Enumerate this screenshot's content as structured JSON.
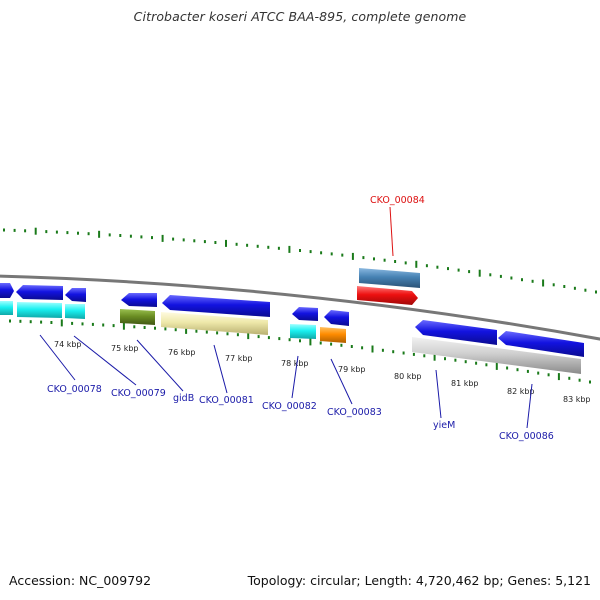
{
  "title": "Citrobacter koseri ATCC BAA-895, complete genome",
  "footer": {
    "accession": "Accession: NC_009792",
    "topology": "Topology: circular; Length: 4,720,462 bp; Genes: 5,121"
  },
  "colors": {
    "label_blue": "#1a1aa8",
    "label_red": "#dd1111",
    "tick_green": "#1a7a1a",
    "backbone": "#777777",
    "gene_blue": "#1313e0",
    "gene_cyan": "#19f0f0",
    "gene_olive": "#6b8e23",
    "gene_khaki": "#eee8aa",
    "gene_orange": "#ff8c00",
    "gene_steelblue": "#4682b4",
    "gene_red": "#ee1111",
    "gene_gray": "#c8c8c8"
  },
  "scale_labels": [
    "74 kbp",
    "75 kbp",
    "76 kbp",
    "77 kbp",
    "78 kbp",
    "79 kbp",
    "80 kbp",
    "81 kbp",
    "82 kbp",
    "83 kbp"
  ],
  "gene_labels": [
    "CKO_00078",
    "CKO_00079",
    "gidB",
    "CKO_00081",
    "CKO_00082",
    "CKO_00083",
    "CKO_00084",
    "yieM",
    "CKO_00086"
  ]
}
